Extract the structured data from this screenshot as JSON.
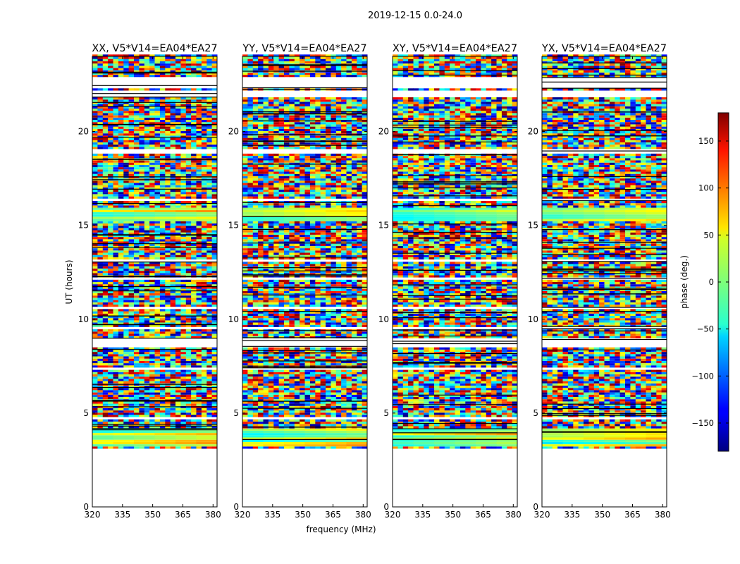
{
  "suptitle": "2019-12-15 0.0-24.0",
  "chart_data": {
    "type": "heatmap",
    "ylabel": "UT (hours)",
    "xlabel": "frequency (MHz)",
    "xlim": [
      320,
      382
    ],
    "ylim": [
      0,
      24
    ],
    "xticks": [
      320,
      335,
      350,
      365,
      380
    ],
    "yticks": [
      0,
      5,
      10,
      15,
      20
    ],
    "panels": [
      {
        "title": "XX, V5*V14=EA04*EA27"
      },
      {
        "title": "YY, V5*V14=EA04*EA27"
      },
      {
        "title": "XY, V5*V14=EA04*EA27"
      },
      {
        "title": "YX, V5*V14=EA04*EA27"
      }
    ],
    "data_start_hour": 3.1,
    "data_end_hour": 24,
    "colorbar": {
      "label": "phase (deg.)",
      "range": [
        -180,
        180
      ],
      "ticks": [
        150,
        100,
        50,
        0,
        -50,
        -100,
        -150
      ],
      "tick_labels": [
        "150",
        "100",
        "50",
        "0",
        "−50",
        "−100",
        "−150"
      ],
      "colormap": "jet"
    }
  }
}
